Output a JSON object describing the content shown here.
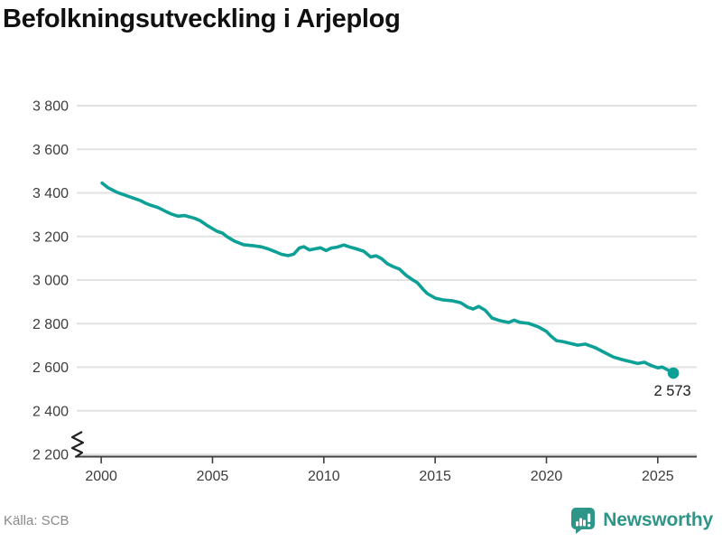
{
  "page": {
    "title": "Befolkningsutveckling i Arjeplog",
    "source": "Källa: SCB",
    "brand": "Newsworthy"
  },
  "chart_data": {
    "type": "line",
    "title": "Befolkningsutveckling i Arjeplog",
    "xlabel": "",
    "ylabel": "",
    "xlim": [
      1998.9,
      2026.75
    ],
    "ylim": [
      2200,
      3800
    ],
    "grid": "horizontal",
    "axis_break": true,
    "legend": "none",
    "xticks": [
      {
        "v": 2000,
        "label": "2000"
      },
      {
        "v": 2005,
        "label": "2005"
      },
      {
        "v": 2010,
        "label": "2010"
      },
      {
        "v": 2015,
        "label": "2015"
      },
      {
        "v": 2020,
        "label": "2020"
      },
      {
        "v": 2025,
        "label": "2025"
      }
    ],
    "yticks": [
      {
        "v": 2200,
        "label": "2 200"
      },
      {
        "v": 2400,
        "label": "2 400"
      },
      {
        "v": 2600,
        "label": "2 600"
      },
      {
        "v": 2800,
        "label": "2 800"
      },
      {
        "v": 3000,
        "label": "3 000"
      },
      {
        "v": 3200,
        "label": "3 200"
      },
      {
        "v": 3400,
        "label": "3 400"
      },
      {
        "v": 3600,
        "label": "3 600"
      },
      {
        "v": 3800,
        "label": "3 800"
      }
    ],
    "series": [
      {
        "name": "Befolkning i Arjeplog",
        "color": "#0DA096",
        "points": [
          [
            2000.04,
            3445
          ],
          [
            2000.3,
            3424
          ],
          [
            2000.7,
            3403
          ],
          [
            2001.0,
            3392
          ],
          [
            2001.3,
            3381
          ],
          [
            2001.75,
            3365
          ],
          [
            2002.0,
            3352
          ],
          [
            2002.2,
            3344
          ],
          [
            2002.55,
            3333
          ],
          [
            2002.95,
            3312
          ],
          [
            2003.15,
            3303
          ],
          [
            2003.45,
            3293
          ],
          [
            2003.75,
            3296
          ],
          [
            2003.95,
            3290
          ],
          [
            2004.2,
            3283
          ],
          [
            2004.45,
            3272
          ],
          [
            2004.8,
            3248
          ],
          [
            2005.2,
            3224
          ],
          [
            2005.45,
            3215
          ],
          [
            2005.65,
            3199
          ],
          [
            2006.0,
            3178
          ],
          [
            2006.4,
            3162
          ],
          [
            2006.8,
            3158
          ],
          [
            2007.2,
            3152
          ],
          [
            2007.5,
            3143
          ],
          [
            2007.8,
            3131
          ],
          [
            2008.1,
            3118
          ],
          [
            2008.4,
            3112
          ],
          [
            2008.65,
            3119
          ],
          [
            2008.9,
            3147
          ],
          [
            2009.1,
            3153
          ],
          [
            2009.35,
            3138
          ],
          [
            2009.6,
            3143
          ],
          [
            2009.85,
            3148
          ],
          [
            2010.1,
            3135
          ],
          [
            2010.35,
            3147
          ],
          [
            2010.6,
            3151
          ],
          [
            2010.9,
            3161
          ],
          [
            2011.15,
            3152
          ],
          [
            2011.4,
            3145
          ],
          [
            2011.8,
            3132
          ],
          [
            2012.1,
            3106
          ],
          [
            2012.35,
            3111
          ],
          [
            2012.6,
            3098
          ],
          [
            2012.85,
            3075
          ],
          [
            2013.1,
            3062
          ],
          [
            2013.4,
            3050
          ],
          [
            2013.7,
            3021
          ],
          [
            2014.0,
            3000
          ],
          [
            2014.2,
            2988
          ],
          [
            2014.45,
            2958
          ],
          [
            2014.65,
            2938
          ],
          [
            2015.0,
            2917
          ],
          [
            2015.35,
            2909
          ],
          [
            2015.75,
            2905
          ],
          [
            2016.15,
            2896
          ],
          [
            2016.45,
            2876
          ],
          [
            2016.7,
            2867
          ],
          [
            2016.95,
            2879
          ],
          [
            2017.25,
            2861
          ],
          [
            2017.55,
            2826
          ],
          [
            2017.9,
            2814
          ],
          [
            2018.3,
            2805
          ],
          [
            2018.55,
            2816
          ],
          [
            2018.8,
            2806
          ],
          [
            2019.2,
            2801
          ],
          [
            2019.45,
            2792
          ],
          [
            2019.65,
            2784
          ],
          [
            2020.0,
            2764
          ],
          [
            2020.2,
            2743
          ],
          [
            2020.45,
            2722
          ],
          [
            2020.7,
            2718
          ],
          [
            2021.0,
            2711
          ],
          [
            2021.4,
            2701
          ],
          [
            2021.75,
            2706
          ],
          [
            2022.2,
            2689
          ],
          [
            2022.6,
            2668
          ],
          [
            2023.0,
            2647
          ],
          [
            2023.4,
            2635
          ],
          [
            2023.8,
            2625
          ],
          [
            2024.1,
            2617
          ],
          [
            2024.4,
            2623
          ],
          [
            2024.7,
            2608
          ],
          [
            2025.0,
            2597
          ],
          [
            2025.2,
            2601
          ],
          [
            2025.45,
            2587
          ],
          [
            2025.7,
            2573
          ]
        ]
      }
    ],
    "end_point": {
      "x": 2025.7,
      "y": 2573,
      "label": "2 573"
    },
    "colors": {
      "line": "#0DA096",
      "grid": "#e2e2e2",
      "axis": "#3f3f3f",
      "tick_text": "#3d3d3d",
      "annotation": "#1a1a1a",
      "source_text": "#8a8a8a",
      "brand": "#2E9688"
    }
  }
}
